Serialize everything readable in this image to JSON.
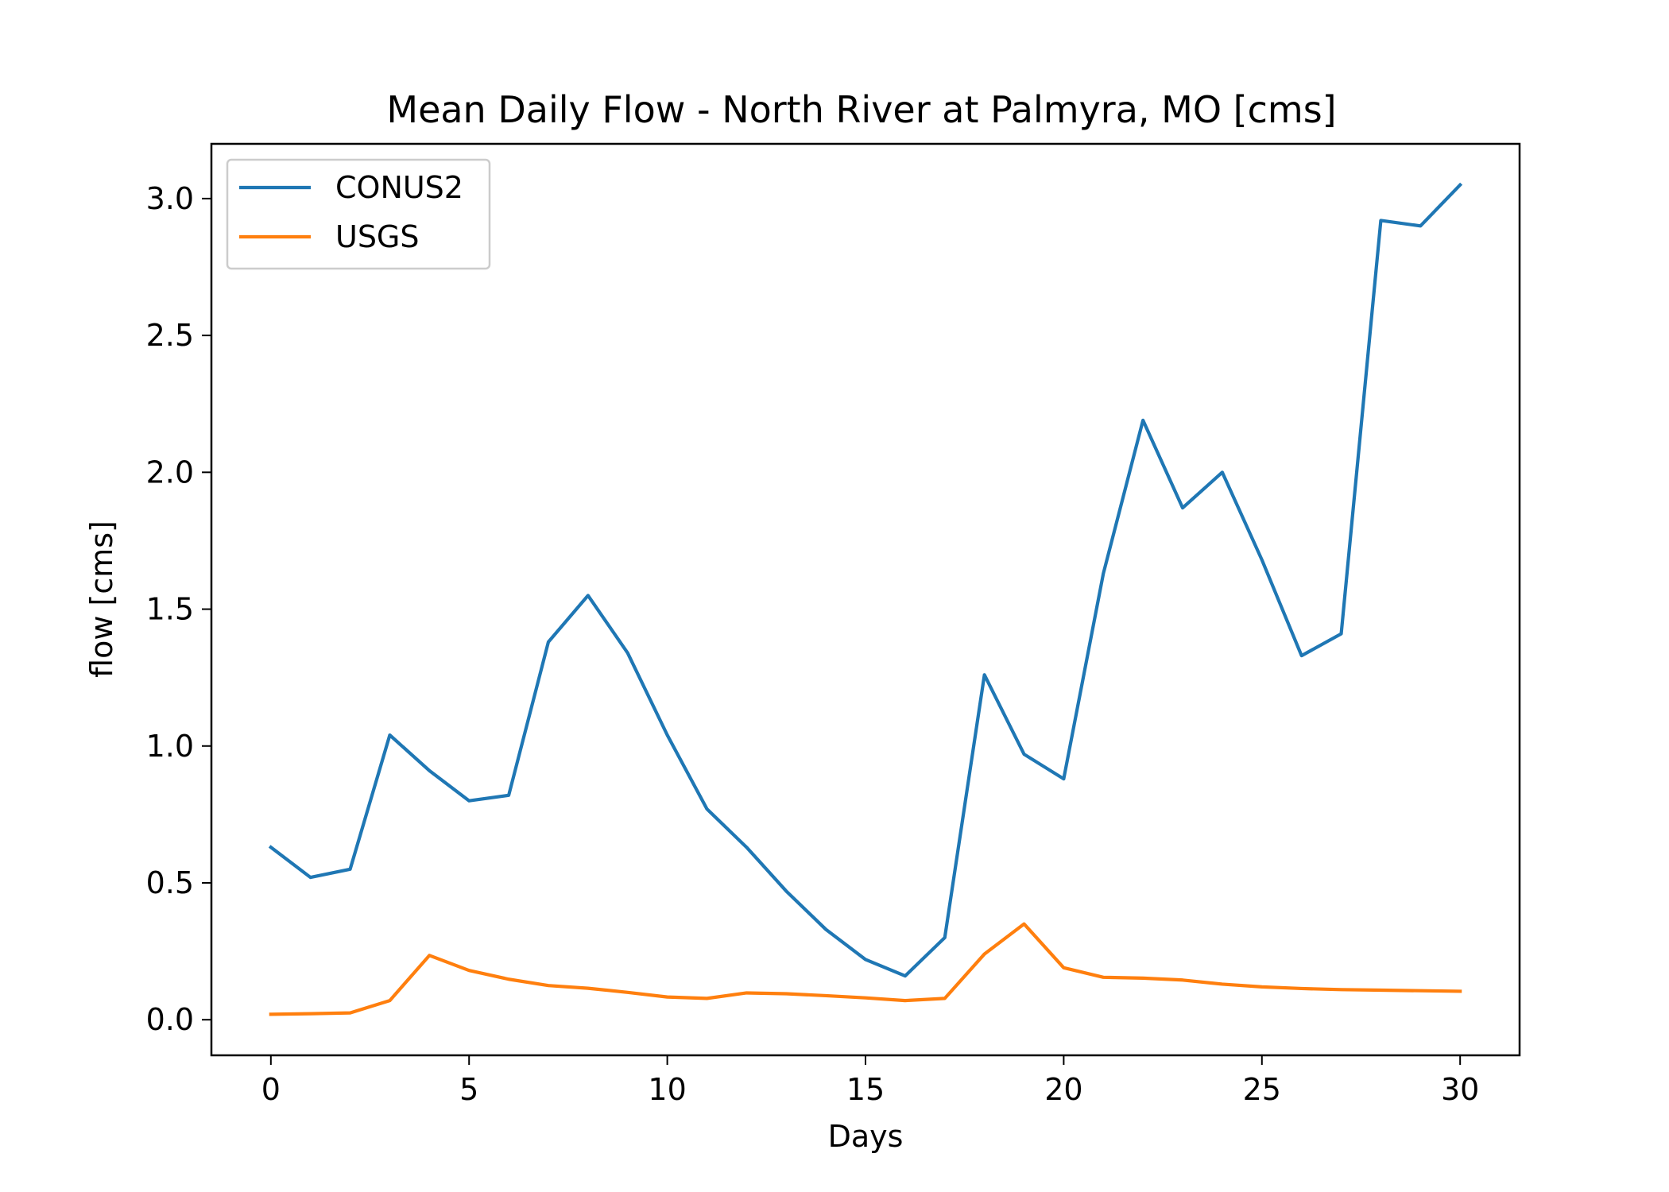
{
  "chart_data": {
    "type": "line",
    "title": "Mean Daily Flow - North River at Palmyra, MO [cms]",
    "xlabel": "Days",
    "ylabel": "flow [cms]",
    "xlim": [
      -1.5,
      31.5
    ],
    "ylim": [
      -0.13,
      3.2
    ],
    "xticks": [
      0,
      5,
      10,
      15,
      20,
      25,
      30
    ],
    "yticks": [
      0.0,
      0.5,
      1.0,
      1.5,
      2.0,
      2.5,
      3.0
    ],
    "xtick_labels": [
      "0",
      "5",
      "10",
      "15",
      "20",
      "25",
      "30"
    ],
    "ytick_labels": [
      "0.0",
      "0.5",
      "1.0",
      "1.5",
      "2.0",
      "2.5",
      "3.0"
    ],
    "grid": false,
    "legend_position": "upper-left",
    "x": [
      0,
      1,
      2,
      3,
      4,
      5,
      6,
      7,
      8,
      9,
      10,
      11,
      12,
      13,
      14,
      15,
      16,
      17,
      18,
      19,
      20,
      21,
      22,
      23,
      24,
      25,
      26,
      27,
      28,
      29,
      30
    ],
    "series": [
      {
        "name": "CONUS2",
        "color": "#1f77b4",
        "values": [
          0.63,
          0.52,
          0.55,
          1.04,
          0.91,
          0.8,
          0.82,
          1.38,
          1.55,
          1.34,
          1.04,
          0.77,
          0.63,
          0.47,
          0.33,
          0.22,
          0.16,
          0.3,
          1.26,
          0.97,
          0.88,
          1.63,
          2.19,
          1.87,
          2.0,
          1.68,
          1.33,
          1.41,
          2.92,
          2.9,
          3.05
        ]
      },
      {
        "name": "USGS",
        "color": "#ff7f0e",
        "values": [
          0.02,
          0.022,
          0.025,
          0.07,
          0.235,
          0.18,
          0.148,
          0.125,
          0.115,
          0.1,
          0.083,
          0.078,
          0.098,
          0.095,
          0.088,
          0.08,
          0.07,
          0.078,
          0.24,
          0.35,
          0.19,
          0.155,
          0.152,
          0.145,
          0.13,
          0.12,
          0.114,
          0.11,
          0.108,
          0.106,
          0.104
        ]
      }
    ]
  }
}
